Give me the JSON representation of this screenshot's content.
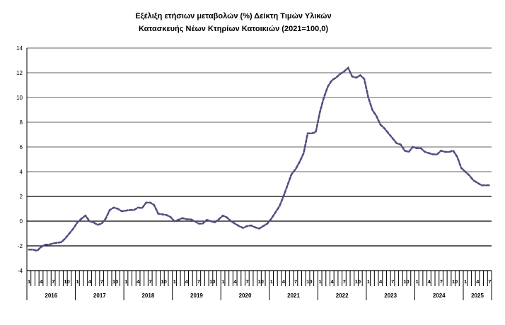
{
  "chart_data": {
    "type": "line",
    "title": [
      "Εξέλιξη ετήσιων μεταβολών (%) Δείκτη Τιμών Υλικών",
      "Κατασκευής Νέων Κτηρίων Κατοικιών (2021=100,0)"
    ],
    "xlabel": "",
    "ylabel": "",
    "ylim": [
      -4,
      14
    ],
    "yticks": [
      -4,
      -2,
      0,
      2,
      4,
      6,
      8,
      10,
      12,
      14
    ],
    "grid": true,
    "legend": "none",
    "line_color": "#5a4a80",
    "line_style": "dashed",
    "years": [
      "2016",
      "2017",
      "2018",
      "2019",
      "2020",
      "2021",
      "2022",
      "2023",
      "2024",
      "2025"
    ],
    "month_tick_labels": [
      "1",
      "4",
      "7",
      "10"
    ],
    "values": [
      -2.3,
      -2.3,
      -2.4,
      -2.1,
      -1.9,
      -1.9,
      -1.8,
      -1.75,
      -1.7,
      -1.4,
      -1.0,
      -0.6,
      -0.1,
      0.2,
      0.45,
      0.0,
      -0.1,
      -0.3,
      -0.2,
      0.2,
      0.9,
      1.1,
      1.0,
      0.8,
      0.85,
      0.9,
      0.9,
      1.1,
      1.05,
      1.5,
      1.5,
      1.3,
      0.6,
      0.55,
      0.5,
      0.35,
      0.0,
      0.1,
      0.25,
      0.15,
      0.15,
      0.0,
      -0.2,
      -0.2,
      0.1,
      0.0,
      -0.1,
      0.15,
      0.45,
      0.3,
      0.0,
      -0.2,
      -0.4,
      -0.55,
      -0.4,
      -0.35,
      -0.5,
      -0.6,
      -0.4,
      -0.2,
      0.2,
      0.7,
      1.2,
      2.0,
      2.9,
      3.8,
      4.2,
      4.8,
      5.5,
      7.1,
      7.1,
      7.2,
      8.8,
      10.0,
      10.9,
      11.4,
      11.6,
      11.9,
      12.1,
      12.4,
      11.7,
      11.6,
      11.8,
      11.5,
      10.0,
      9.0,
      8.5,
      7.8,
      7.5,
      7.1,
      6.7,
      6.3,
      6.2,
      5.7,
      5.6,
      6.0,
      5.9,
      5.9,
      5.6,
      5.5,
      5.4,
      5.4,
      5.7,
      5.6,
      5.6,
      5.7,
      5.2,
      4.3,
      4.0,
      3.7,
      3.3,
      3.1,
      2.9,
      2.9,
      2.9
    ]
  }
}
